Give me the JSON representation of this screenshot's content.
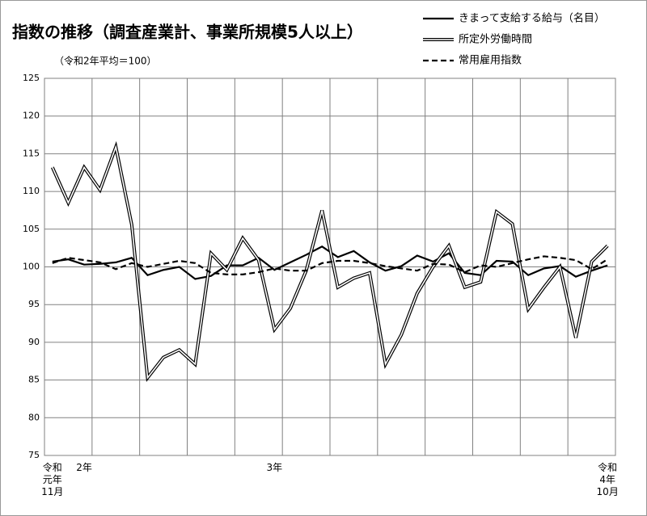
{
  "chart_data": {
    "type": "line",
    "title": "指数の推移（調査産業計、事業所規模5人以上）",
    "subtitle": "（令和2年平均＝100）",
    "categories": [
      "令和\n元年\n11月",
      null,
      "2年",
      null,
      null,
      null,
      null,
      null,
      null,
      null,
      null,
      null,
      null,
      null,
      "3年",
      null,
      null,
      null,
      null,
      null,
      null,
      null,
      null,
      null,
      null,
      null,
      null,
      null,
      null,
      null,
      null,
      null,
      null,
      null,
      null,
      "令和\n4年\n10月"
    ],
    "series": [
      {
        "name": "きまって支給する給与（名目）",
        "color": "#000000",
        "style": "solid",
        "values": [
          100.7,
          101.0,
          100.3,
          100.4,
          100.6,
          101.2,
          98.9,
          99.6,
          100.0,
          98.4,
          98.8,
          100.2,
          100.2,
          101.2,
          99.6,
          100.6,
          101.6,
          102.7,
          101.3,
          102.1,
          100.6,
          99.5,
          100.1,
          101.5,
          100.7,
          101.8,
          99.2,
          98.9,
          100.8,
          100.7,
          98.9,
          99.8,
          100.1,
          98.7,
          99.5,
          100.2
        ]
      },
      {
        "name": "所定外労働時間",
        "color": "#000000",
        "style": "double",
        "values": [
          113.2,
          108.5,
          113.2,
          110.2,
          115.9,
          105.6,
          85.3,
          88.0,
          89.0,
          87.1,
          101.8,
          99.6,
          103.8,
          100.9,
          91.7,
          94.5,
          99.5,
          107.5,
          97.3,
          98.5,
          99.2,
          87.1,
          91.0,
          96.5,
          100.0,
          102.8,
          97.3,
          98.0,
          107.3,
          105.7,
          94.4,
          97.3,
          100.0,
          90.6,
          100.7,
          102.8
        ]
      },
      {
        "name": "常用雇用指数",
        "color": "#000000",
        "style": "dashed",
        "values": [
          100.5,
          101.2,
          100.9,
          100.6,
          99.7,
          100.5,
          100.0,
          100.4,
          100.8,
          100.5,
          99.2,
          99.0,
          99.0,
          99.3,
          99.8,
          99.5,
          99.5,
          100.5,
          100.8,
          100.8,
          100.5,
          100.1,
          99.8,
          99.5,
          100.4,
          100.3,
          99.3,
          100.2,
          100.0,
          100.5,
          101.0,
          101.4,
          101.2,
          100.9,
          99.7,
          101.0
        ]
      }
    ],
    "ylim": [
      75,
      125
    ],
    "yticks": [
      75,
      80,
      85,
      90,
      95,
      100,
      105,
      110,
      115,
      120,
      125
    ],
    "grid": true
  }
}
